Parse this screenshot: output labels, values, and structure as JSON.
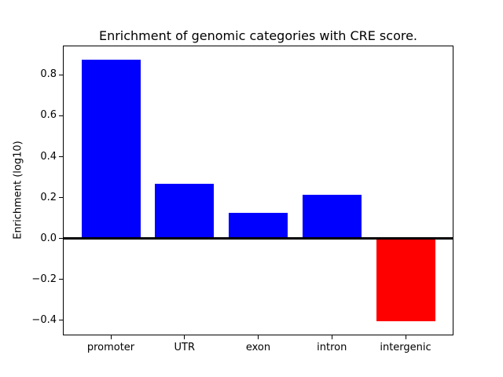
{
  "chart_data": {
    "type": "bar",
    "title": "Enrichment of genomic categories with CRE score.",
    "ylabel": "Enrichment (log10)",
    "xlabel": "",
    "categories": [
      "promoter",
      "UTR",
      "exon",
      "intron",
      "intergenic"
    ],
    "values": [
      0.875,
      0.268,
      0.127,
      0.215,
      -0.406
    ],
    "bar_colors": [
      "#0000ff",
      "#0000ff",
      "#0000ff",
      "#0000ff",
      "#ff0000"
    ],
    "positive_color": "#0000ff",
    "negative_color": "#ff0000",
    "bar_width": 0.8,
    "xlim": [
      -0.64,
      4.64
    ],
    "ylim": [
      -0.47,
      0.94
    ],
    "yticks": [
      0.8,
      0.6,
      0.4,
      0.2,
      0.0,
      -0.2,
      -0.4
    ],
    "ytick_labels": [
      "0.8",
      "0.6",
      "0.4",
      "0.2",
      "0.0",
      "−0.2",
      "−0.4"
    ],
    "grid": false,
    "legend": null,
    "zero_line": true,
    "axis_color": "#000000",
    "background_color": "#ffffff"
  }
}
